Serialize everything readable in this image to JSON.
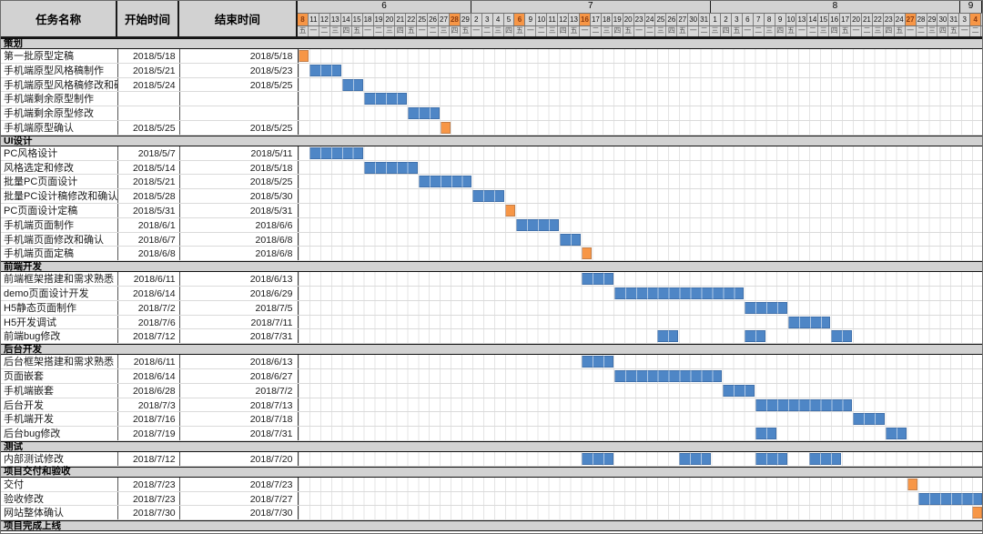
{
  "table": {
    "headers": {
      "task": "任务名称",
      "start": "开始时间",
      "end": "结束时间"
    }
  },
  "colors": {
    "bar_blue": "#4e86c6",
    "bar_orange": "#f79646",
    "section_bg": "#d2d2d2",
    "header_bg": "#d9d9d9",
    "highlight_day_bg": "#f79646"
  },
  "chart_data": {
    "type": "bar",
    "subtype": "gantt",
    "title": "",
    "columns": [
      "任务名称",
      "开始时间",
      "结束时间"
    ],
    "timeline": {
      "unit": "weekday",
      "months": [
        {
          "label": "6",
          "days": [
            {
              "d": "8",
              "w": "五",
              "hl": true
            },
            {
              "d": "11",
              "w": "一"
            },
            {
              "d": "12",
              "w": "二"
            },
            {
              "d": "13",
              "w": "三"
            },
            {
              "d": "14",
              "w": "四"
            },
            {
              "d": "15",
              "w": "五"
            },
            {
              "d": "18",
              "w": "一"
            },
            {
              "d": "19",
              "w": "二"
            },
            {
              "d": "20",
              "w": "三"
            },
            {
              "d": "21",
              "w": "四"
            },
            {
              "d": "22",
              "w": "五"
            },
            {
              "d": "25",
              "w": "一"
            },
            {
              "d": "26",
              "w": "二"
            },
            {
              "d": "27",
              "w": "三"
            },
            {
              "d": "28",
              "w": "四",
              "hl": true
            },
            {
              "d": "29",
              "w": "五"
            }
          ]
        },
        {
          "label": "7",
          "days": [
            {
              "d": "2",
              "w": "一"
            },
            {
              "d": "3",
              "w": "二"
            },
            {
              "d": "4",
              "w": "三"
            },
            {
              "d": "5",
              "w": "四"
            },
            {
              "d": "6",
              "w": "五",
              "hl": true
            },
            {
              "d": "9",
              "w": "一"
            },
            {
              "d": "10",
              "w": "二"
            },
            {
              "d": "11",
              "w": "三"
            },
            {
              "d": "12",
              "w": "四"
            },
            {
              "d": "13",
              "w": "五"
            },
            {
              "d": "16",
              "w": "一",
              "hl": true
            },
            {
              "d": "17",
              "w": "二"
            },
            {
              "d": "18",
              "w": "三"
            },
            {
              "d": "19",
              "w": "四"
            },
            {
              "d": "20",
              "w": "五"
            },
            {
              "d": "23",
              "w": "一"
            },
            {
              "d": "24",
              "w": "二"
            },
            {
              "d": "25",
              "w": "三"
            },
            {
              "d": "26",
              "w": "四"
            },
            {
              "d": "27",
              "w": "五"
            },
            {
              "d": "30",
              "w": "一"
            },
            {
              "d": "31",
              "w": "二"
            }
          ]
        },
        {
          "label": "8",
          "days": [
            {
              "d": "1",
              "w": "三"
            },
            {
              "d": "2",
              "w": "四"
            },
            {
              "d": "3",
              "w": "五"
            },
            {
              "d": "6",
              "w": "一"
            },
            {
              "d": "7",
              "w": "二"
            },
            {
              "d": "8",
              "w": "三"
            },
            {
              "d": "9",
              "w": "四"
            },
            {
              "d": "10",
              "w": "五"
            },
            {
              "d": "13",
              "w": "一"
            },
            {
              "d": "14",
              "w": "二"
            },
            {
              "d": "15",
              "w": "三"
            },
            {
              "d": "16",
              "w": "四"
            },
            {
              "d": "17",
              "w": "五"
            },
            {
              "d": "20",
              "w": "一"
            },
            {
              "d": "21",
              "w": "二"
            },
            {
              "d": "22",
              "w": "三"
            },
            {
              "d": "23",
              "w": "四"
            },
            {
              "d": "24",
              "w": "五"
            },
            {
              "d": "27",
              "w": "一",
              "hl": true
            },
            {
              "d": "28",
              "w": "二"
            },
            {
              "d": "29",
              "w": "三"
            },
            {
              "d": "30",
              "w": "四"
            },
            {
              "d": "31",
              "w": "五"
            }
          ]
        },
        {
          "label": "9",
          "days": [
            {
              "d": "3",
              "w": "一"
            },
            {
              "d": "4",
              "w": "二",
              "hl": true
            }
          ]
        }
      ]
    },
    "sections": [
      {
        "name": "策划",
        "tasks": [
          {
            "name": "第一批原型定稿",
            "start": "2018/5/18",
            "end": "2018/5/18",
            "bars": [
              [
                0,
                0,
                "o"
              ]
            ]
          },
          {
            "name": "手机端原型风格稿制作",
            "start": "2018/5/21",
            "end": "2018/5/23",
            "bars": [
              [
                1,
                3,
                "b"
              ]
            ]
          },
          {
            "name": "手机端原型风格稿修改和确认",
            "start": "2018/5/24",
            "end": "2018/5/25",
            "bars": [
              [
                4,
                5,
                "b"
              ]
            ]
          },
          {
            "name": "手机端剩余原型制作",
            "start": "",
            "end": "",
            "bars": [
              [
                6,
                9,
                "b"
              ]
            ]
          },
          {
            "name": "手机端剩余原型修改",
            "start": "",
            "end": "",
            "bars": [
              [
                10,
                12,
                "b"
              ]
            ]
          },
          {
            "name": "手机端原型确认",
            "start": "2018/5/25",
            "end": "2018/5/25",
            "bars": [
              [
                13,
                13,
                "o"
              ]
            ]
          }
        ]
      },
      {
        "name": "UI设计",
        "tasks": [
          {
            "name": "PC风格设计",
            "start": "2018/5/7",
            "end": "2018/5/11",
            "bars": [
              [
                1,
                5,
                "b"
              ]
            ]
          },
          {
            "name": "风格选定和修改",
            "start": "2018/5/14",
            "end": "2018/5/18",
            "bars": [
              [
                6,
                10,
                "b"
              ]
            ]
          },
          {
            "name": "批量PC页面设计",
            "start": "2018/5/21",
            "end": "2018/5/25",
            "bars": [
              [
                11,
                15,
                "b"
              ]
            ]
          },
          {
            "name": "批量PC设计稿修改和确认",
            "start": "2018/5/28",
            "end": "2018/5/30",
            "bars": [
              [
                16,
                18,
                "b"
              ]
            ]
          },
          {
            "name": "PC页面设计定稿",
            "start": "2018/5/31",
            "end": "2018/5/31",
            "bars": [
              [
                19,
                19,
                "o"
              ]
            ]
          },
          {
            "name": "手机端页面制作",
            "start": "2018/6/1",
            "end": "2018/6/6",
            "bars": [
              [
                20,
                23,
                "b"
              ]
            ]
          },
          {
            "name": "手机端页面修改和确认",
            "start": "2018/6/7",
            "end": "2018/6/8",
            "bars": [
              [
                24,
                25,
                "b"
              ]
            ]
          },
          {
            "name": "手机端页面定稿",
            "start": "2018/6/8",
            "end": "2018/6/8",
            "bars": [
              [
                26,
                26,
                "o"
              ]
            ]
          }
        ]
      },
      {
        "name": "前端开发",
        "tasks": [
          {
            "name": "前端框架搭建和需求熟悉",
            "start": "2018/6/11",
            "end": "2018/6/13",
            "bars": [
              [
                26,
                28,
                "b"
              ]
            ]
          },
          {
            "name": "demo页面设计开发",
            "start": "2018/6/14",
            "end": "2018/6/29",
            "bars": [
              [
                29,
                40,
                "b"
              ]
            ]
          },
          {
            "name": "H5静态页面制作",
            "start": "2018/7/2",
            "end": "2018/7/5",
            "bars": [
              [
                41,
                44,
                "b"
              ]
            ]
          },
          {
            "name": "H5开发调试",
            "start": "2018/7/6",
            "end": "2018/7/11",
            "bars": [
              [
                45,
                48,
                "b"
              ]
            ]
          },
          {
            "name": "前端bug修改",
            "start": "2018/7/12",
            "end": "2018/7/31",
            "bars": [
              [
                33,
                34,
                "b"
              ],
              [
                41,
                42,
                "b"
              ],
              [
                49,
                50,
                "b"
              ]
            ]
          }
        ]
      },
      {
        "name": "后台开发",
        "tasks": [
          {
            "name": "后台框架搭建和需求熟悉",
            "start": "2018/6/11",
            "end": "2018/6/13",
            "bars": [
              [
                26,
                28,
                "b"
              ]
            ]
          },
          {
            "name": "页面嵌套",
            "start": "2018/6/14",
            "end": "2018/6/27",
            "bars": [
              [
                29,
                38,
                "b"
              ]
            ]
          },
          {
            "name": "手机端嵌套",
            "start": "2018/6/28",
            "end": "2018/7/2",
            "bars": [
              [
                39,
                41,
                "b"
              ]
            ]
          },
          {
            "name": "后台开发",
            "start": "2018/7/3",
            "end": "2018/7/13",
            "bars": [
              [
                42,
                50,
                "b"
              ]
            ]
          },
          {
            "name": "手机端开发",
            "start": "2018/7/16",
            "end": "2018/7/18",
            "bars": [
              [
                51,
                53,
                "b"
              ]
            ]
          },
          {
            "name": "后台bug修改",
            "start": "2018/7/19",
            "end": "2018/7/31",
            "bars": [
              [
                42,
                43,
                "b"
              ],
              [
                54,
                55,
                "b"
              ]
            ]
          }
        ]
      },
      {
        "name": "测试",
        "tasks": [
          {
            "name": "内部测试修改",
            "start": "2018/7/12",
            "end": "2018/7/20",
            "bars": [
              [
                26,
                28,
                "b"
              ],
              [
                35,
                37,
                "b"
              ],
              [
                42,
                44,
                "b"
              ],
              [
                47,
                49,
                "b"
              ]
            ]
          }
        ]
      },
      {
        "name": "项目交付和验收",
        "tasks": [
          {
            "name": "交付",
            "start": "2018/7/23",
            "end": "2018/7/23",
            "bars": [
              [
                56,
                56,
                "o"
              ]
            ]
          },
          {
            "name": "验收修改",
            "start": "2018/7/23",
            "end": "2018/7/27",
            "bars": [
              [
                57,
                62,
                "b"
              ]
            ]
          },
          {
            "name": "网站整体确认",
            "start": "2018/7/30",
            "end": "2018/7/30",
            "bars": [
              [
                62,
                62,
                "o"
              ]
            ]
          }
        ]
      },
      {
        "name": "项目完成上线",
        "tasks": []
      }
    ]
  }
}
